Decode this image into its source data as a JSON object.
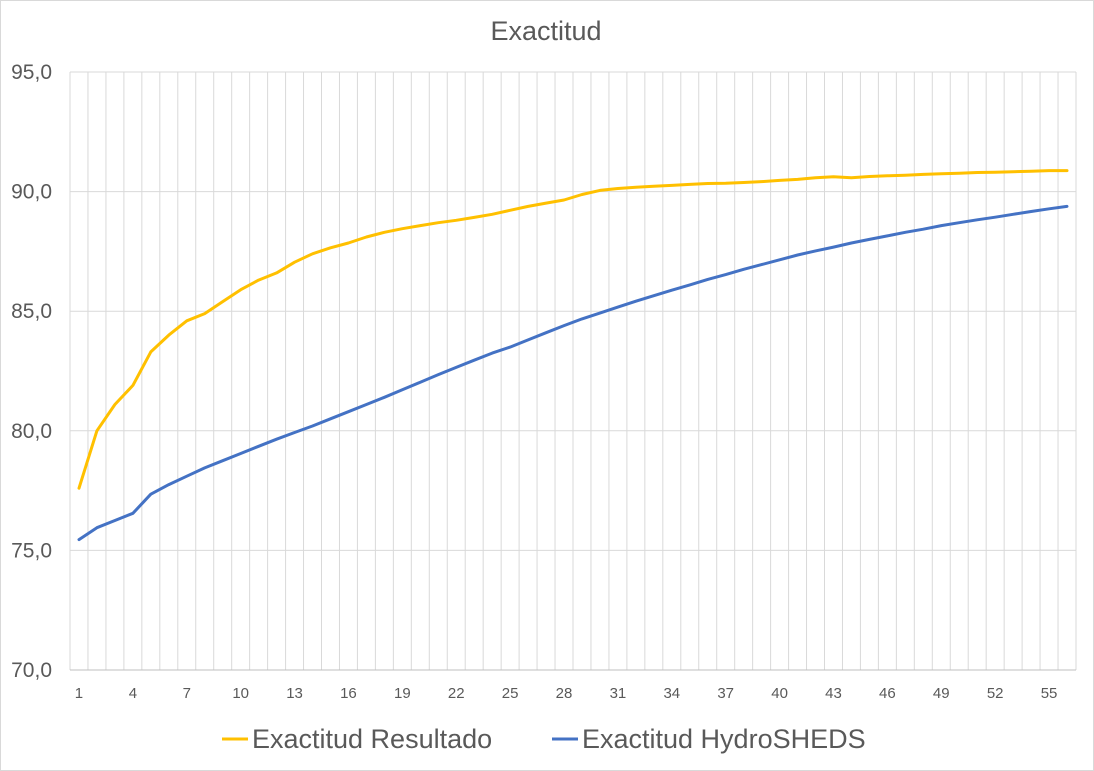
{
  "chart_data": {
    "type": "line",
    "title": "Exactitud",
    "xlabel": "",
    "ylabel": "",
    "ylim": [
      70,
      95
    ],
    "yticks": [
      "70,0",
      "75,0",
      "80,0",
      "85,0",
      "90,0",
      "95,0"
    ],
    "x": [
      1,
      2,
      3,
      4,
      5,
      6,
      7,
      8,
      9,
      10,
      11,
      12,
      13,
      14,
      15,
      16,
      17,
      18,
      19,
      20,
      21,
      22,
      23,
      24,
      25,
      26,
      27,
      28,
      29,
      30,
      31,
      32,
      33,
      34,
      35,
      36,
      37,
      38,
      39,
      40,
      41,
      42,
      43,
      44,
      45,
      46,
      47,
      48,
      49,
      50,
      51,
      52,
      53,
      54,
      55,
      56
    ],
    "xtick_labels": [
      "1",
      "4",
      "7",
      "10",
      "13",
      "16",
      "19",
      "22",
      "25",
      "28",
      "31",
      "34",
      "37",
      "40",
      "43",
      "46",
      "49",
      "52",
      "55"
    ],
    "grid": true,
    "legend_position": "bottom",
    "series": [
      {
        "name": "Exactitud Resultado",
        "color": "#FFC000",
        "values": [
          77.6,
          80.0,
          81.1,
          81.9,
          83.3,
          84.0,
          84.6,
          84.9,
          85.4,
          85.9,
          86.3,
          86.6,
          87.05,
          87.4,
          87.65,
          87.85,
          88.1,
          88.3,
          88.45,
          88.58,
          88.7,
          88.8,
          88.92,
          89.05,
          89.22,
          89.38,
          89.52,
          89.65,
          89.88,
          90.05,
          90.13,
          90.18,
          90.22,
          90.26,
          90.3,
          90.34,
          90.35,
          90.38,
          90.42,
          90.47,
          90.51,
          90.58,
          90.62,
          90.58,
          90.63,
          90.66,
          90.68,
          90.72,
          90.75,
          90.77,
          90.8,
          90.81,
          90.83,
          90.85,
          90.88,
          90.88
        ]
      },
      {
        "name": "Exactitud HydroSHEDS",
        "color": "#4472C4",
        "values": [
          75.45,
          75.95,
          76.25,
          76.55,
          77.35,
          77.75,
          78.1,
          78.45,
          78.75,
          79.05,
          79.35,
          79.65,
          79.93,
          80.2,
          80.5,
          80.8,
          81.1,
          81.4,
          81.72,
          82.03,
          82.35,
          82.65,
          82.95,
          83.25,
          83.5,
          83.8,
          84.1,
          84.4,
          84.68,
          84.92,
          85.17,
          85.42,
          85.65,
          85.88,
          86.1,
          86.33,
          86.53,
          86.75,
          86.95,
          87.15,
          87.35,
          87.52,
          87.68,
          87.85,
          88.0,
          88.15,
          88.3,
          88.43,
          88.58,
          88.7,
          88.82,
          88.93,
          89.05,
          89.17,
          89.28,
          89.38
        ]
      }
    ]
  }
}
